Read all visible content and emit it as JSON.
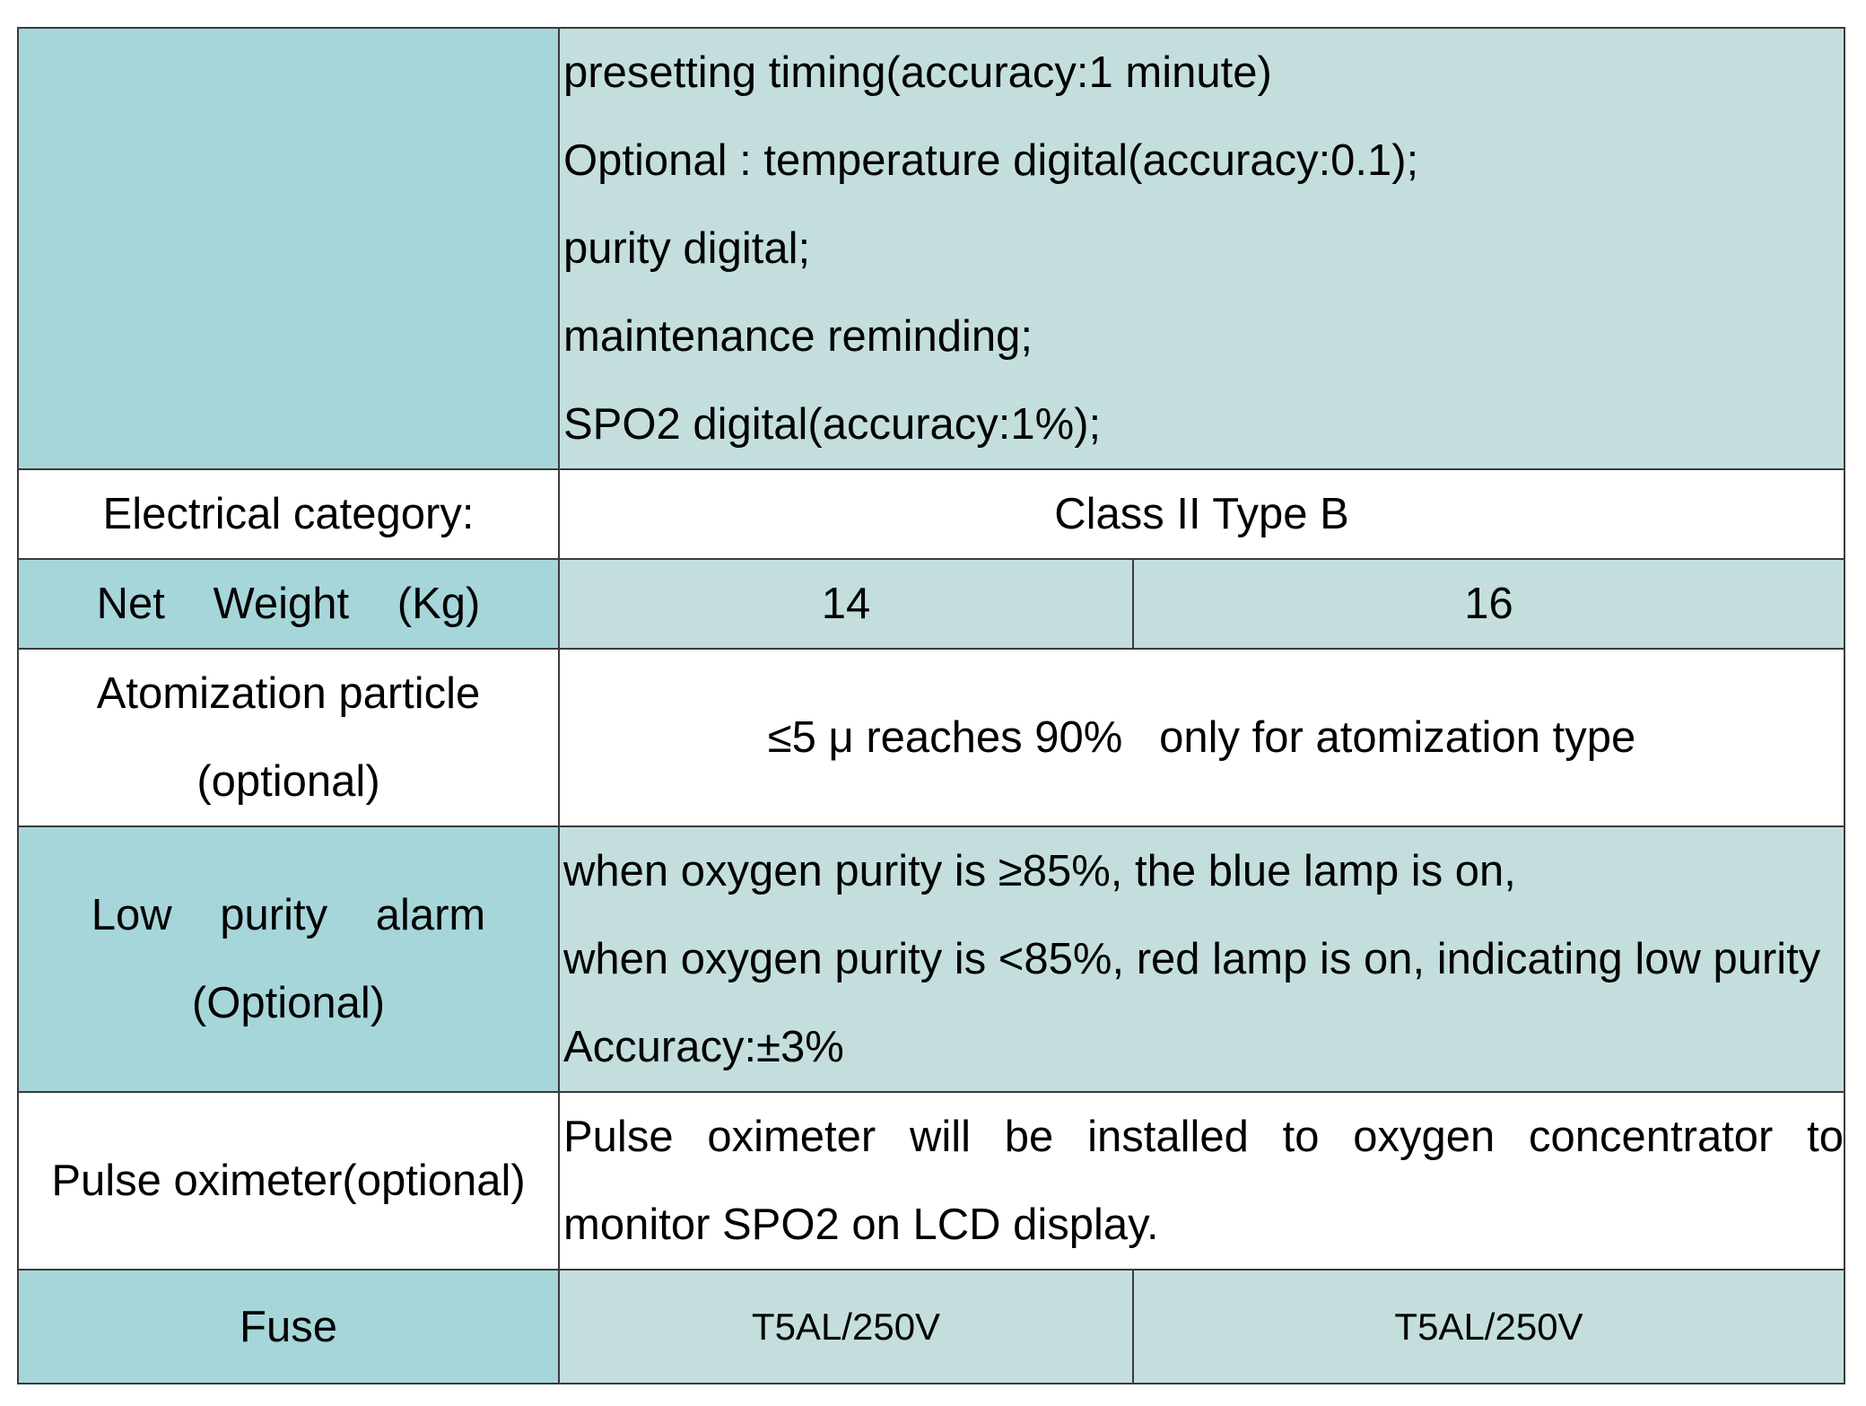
{
  "table": {
    "rows": {
      "displays": {
        "label": "",
        "lines": [
          "presetting timing(accuracy:1 minute)",
          "Optional : temperature digital(accuracy:0.1);",
          "purity digital;",
          "maintenance reminding;",
          "SPO2 digital(accuracy:1%);"
        ]
      },
      "electrical": {
        "label": "Electrical category:",
        "value": "Class II Type B"
      },
      "weight": {
        "label": "Net Weight (Kg)",
        "value_a": "14",
        "value_b": "16"
      },
      "atomization": {
        "label_line1": "Atomization particle",
        "label_line2": "(optional)",
        "value": "≤5 μ reaches 90%   only for atomization type"
      },
      "alarm": {
        "label_line1": "Low purity alarm",
        "label_line2": "(Optional)",
        "lines": [
          "when oxygen purity is ≥85%, the blue lamp is on,",
          "when oxygen purity is <85%, red lamp is on, indicating low purity",
          "Accuracy:±3%"
        ]
      },
      "pulse": {
        "label": "Pulse oximeter(optional)",
        "line1": "Pulse oximeter will be installed to oxygen concentrator to",
        "line2": "monitor SPO2 on LCD display."
      },
      "fuse": {
        "label": "Fuse",
        "value_a": "T5AL/250V",
        "value_b": "T5AL/250V"
      }
    }
  },
  "colors": {
    "label_teal": "#a6d6da",
    "value_teal": "#c4dede",
    "border": "#3a3a3a"
  }
}
